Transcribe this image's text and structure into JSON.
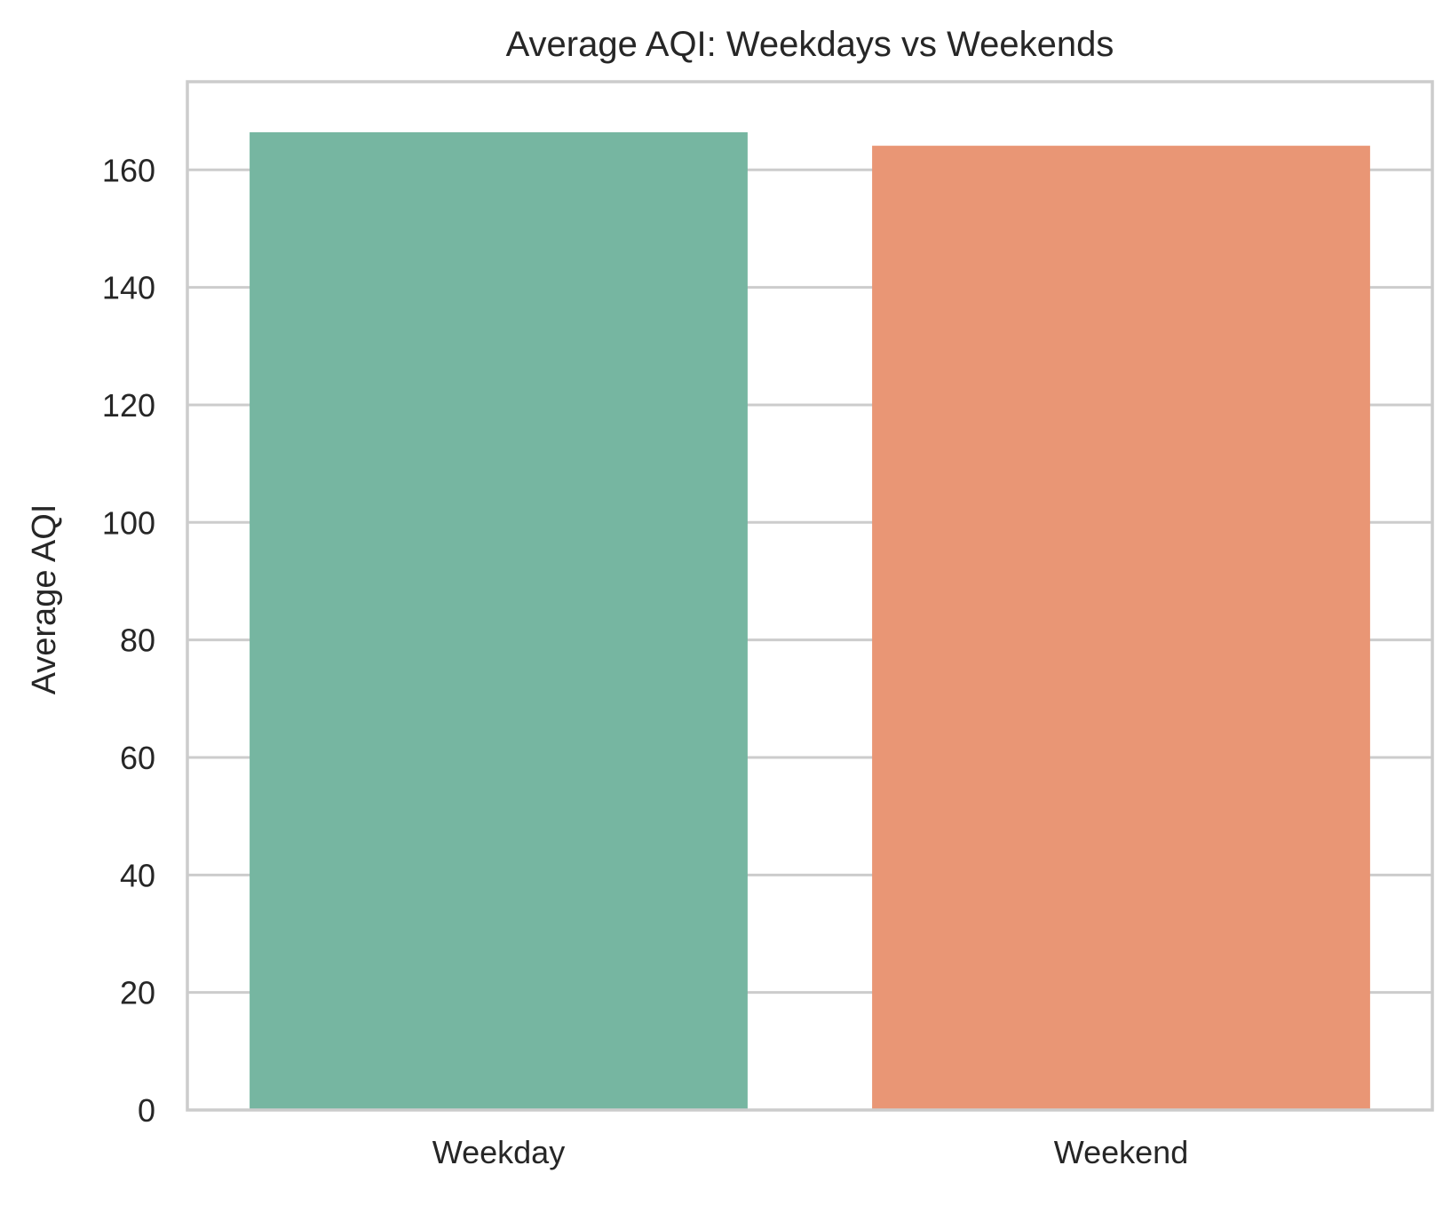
{
  "chart_data": {
    "type": "bar",
    "title": "Average AQI: Weekdays vs Weekends",
    "xlabel": "",
    "ylabel": "Average AQI",
    "categories": [
      "Weekday",
      "Weekend"
    ],
    "values": [
      166.4,
      164.1
    ],
    "ylim": [
      0,
      175
    ],
    "yticks": [
      0,
      20,
      40,
      60,
      80,
      100,
      120,
      140,
      160
    ],
    "grid": true,
    "colors": [
      "#76b6a1",
      "#e99675"
    ]
  }
}
